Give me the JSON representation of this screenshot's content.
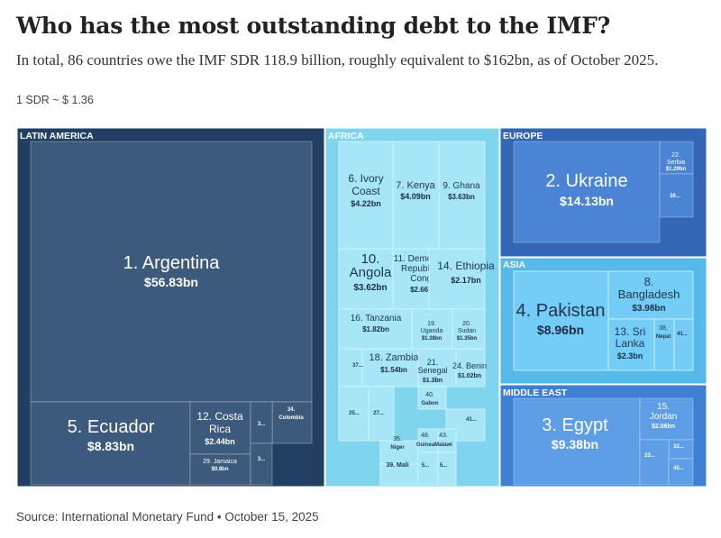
{
  "header": {
    "title": "Who has the most outstanding debt to the IMF?",
    "subtitle": "In total, 86 countries owe the IMF SDR 118.9 billion, roughly equivalent to $162bn, as of October 2025.",
    "note": "1 SDR ~ $ 1.36"
  },
  "footer": {
    "source": "Source: International Monetary Fund • October 15, 2025"
  },
  "chart_data": {
    "type": "treemap",
    "unit": "$bn",
    "colors": {
      "LATIN AMERICA": {
        "region": "#213f63",
        "tile": "#3b5a7c"
      },
      "AFRICA": {
        "region": "#7fd5ee",
        "tile": "#a6e6f7"
      },
      "EUROPE": {
        "region": "#3366b4",
        "tile": "#4a84d2"
      },
      "ASIA": {
        "region": "#55b9ea",
        "tile": "#74cdf6"
      },
      "MIDDLE EAST": {
        "region": "#3f80d4",
        "tile": "#5d9ee6"
      }
    },
    "regions": [
      {
        "name": "LATIN AMERICA",
        "items": [
          {
            "label": "1. Argentina",
            "value": 56.83,
            "value_label": "$56.83bn"
          },
          {
            "label": "5. Ecuador",
            "value": 8.83,
            "value_label": "$8.83bn"
          },
          {
            "label": "12. Costa Rica",
            "value": 2.44,
            "value_label": "$2.44bn"
          },
          {
            "label": "29. Jamaica",
            "value_label": "$0.8bn"
          },
          {
            "label": "34. Colombia"
          },
          {
            "label": "3..."
          },
          {
            "label": "3..."
          }
        ]
      },
      {
        "name": "AFRICA",
        "items": [
          {
            "label": "6. Ivory Coast",
            "value": 4.22,
            "value_label": "$4.22bn"
          },
          {
            "label": "7. Kenya",
            "value": 4.09,
            "value_label": "$4.09bn"
          },
          {
            "label": "9. Ghana",
            "value": 3.63,
            "value_label": "$3.63bn"
          },
          {
            "label": "10. Angola",
            "value": 3.62,
            "value_label": "$3.62bn"
          },
          {
            "label": "11. Democratic Republic of Congo",
            "value": 2.66,
            "value_label": "$2.66bn"
          },
          {
            "label": "14. Ethiopia",
            "value": 2.17,
            "value_label": "$2.17bn"
          },
          {
            "label": "16. Tanzania",
            "value": 1.82,
            "value_label": "$1.82bn"
          },
          {
            "label": "19. Uganda",
            "value_label": "$1.38bn"
          },
          {
            "label": "20. Sudan",
            "value_label": "$1.35bn"
          },
          {
            "label": "18. Zambia",
            "value": 1.54,
            "value_label": "$1.54bn"
          },
          {
            "label": "21. Senegal",
            "value": 1.3,
            "value_label": "$1.3bn"
          },
          {
            "label": "24. Benin",
            "value": 1.02,
            "value_label": "$1.02bn"
          },
          {
            "label": "37..."
          },
          {
            "label": "40. Gabon"
          },
          {
            "label": "25..."
          },
          {
            "label": "27..."
          },
          {
            "label": "41..."
          },
          {
            "label": "35. Niger"
          },
          {
            "label": "48. Guinea"
          },
          {
            "label": "43. Malawi"
          },
          {
            "label": "39. Mali"
          },
          {
            "label": "5..."
          },
          {
            "label": "5..."
          }
        ]
      },
      {
        "name": "EUROPE",
        "items": [
          {
            "label": "2. Ukraine",
            "value": 14.13,
            "value_label": "$14.13bn"
          },
          {
            "label": "22. Serbia",
            "value_label": "$1.29bn"
          },
          {
            "label": "36..."
          }
        ]
      },
      {
        "name": "ASIA",
        "items": [
          {
            "label": "4. Pakistan",
            "value": 8.96,
            "value_label": "$8.96bn"
          },
          {
            "label": "8. Bangladesh",
            "value": 3.98,
            "value_label": "$3.98bn"
          },
          {
            "label": "13. Sri Lanka",
            "value": 2.3,
            "value_label": "$2.3bn"
          },
          {
            "label": "38. Nepal"
          },
          {
            "label": "41..."
          }
        ]
      },
      {
        "name": "MIDDLE EAST",
        "items": [
          {
            "label": "3. Egypt",
            "value": 9.38,
            "value_label": "$9.38bn"
          },
          {
            "label": "15. Jordan",
            "value": 2.06,
            "value_label": "$2.06bn"
          },
          {
            "label": "32..."
          },
          {
            "label": "23..."
          },
          {
            "label": "45..."
          }
        ]
      }
    ]
  }
}
